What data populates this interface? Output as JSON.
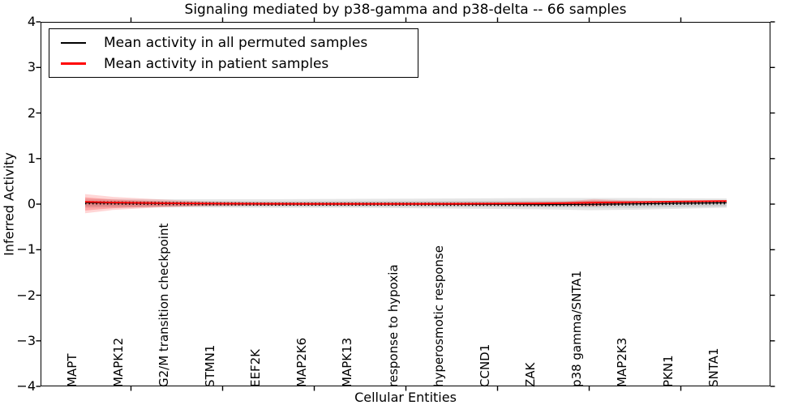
{
  "chart_data": {
    "type": "line",
    "title": "Signaling mediated by p38-gamma and p38-delta -- 66 samples",
    "xlabel": "Cellular Entities",
    "ylabel": "Inferred Activity",
    "ylim": [
      -4,
      4
    ],
    "grid": false,
    "legend_position": "upper left",
    "yticks": [
      {
        "value": 4,
        "label": "4"
      },
      {
        "value": 3,
        "label": "3"
      },
      {
        "value": 2,
        "label": "2"
      },
      {
        "value": 1,
        "label": "1"
      },
      {
        "value": 0,
        "label": "0"
      },
      {
        "value": -1,
        "label": "−1"
      },
      {
        "value": -2,
        "label": "−2"
      },
      {
        "value": -3,
        "label": "−3"
      },
      {
        "value": -4,
        "label": "−4"
      }
    ],
    "categories": [
      "MAPT",
      "MAPK12",
      "G2/M transition checkpoint",
      "STMN1",
      "EEF2K",
      "MAP2K6",
      "MAPK13",
      "response to hypoxia",
      "hyperosmotic response",
      "CCND1",
      "ZAK",
      "p38 gamma/SNTA1",
      "MAP2K3",
      "PKN1",
      "SNTA1"
    ],
    "xtick_positions": [
      1,
      3,
      5,
      7,
      9,
      11,
      13
    ],
    "series": [
      {
        "label": "Mean activity in all permuted samples",
        "color": "#000000",
        "marker": "ticks",
        "points": [
          [
            0,
            0.03
          ],
          [
            1,
            0.02
          ],
          [
            2,
            0.01
          ],
          [
            3,
            0.005
          ],
          [
            4,
            0.0
          ],
          [
            5,
            0.0
          ],
          [
            6,
            0.0
          ],
          [
            7,
            0.0
          ],
          [
            8,
            -0.005
          ],
          [
            9,
            -0.005
          ],
          [
            10,
            -0.01
          ],
          [
            11,
            -0.005
          ],
          [
            12,
            0.005
          ],
          [
            13,
            0.02
          ],
          [
            14,
            0.03
          ]
        ]
      },
      {
        "label": "Mean activity in patient samples",
        "color": "#ff0000",
        "marker": "none",
        "points": [
          [
            0,
            0.05
          ],
          [
            0.6,
            0.035
          ],
          [
            1.7,
            0.02
          ],
          [
            3,
            0.01
          ],
          [
            5,
            0.005
          ],
          [
            7,
            0.005
          ],
          [
            8,
            0.005
          ],
          [
            9,
            0.01
          ],
          [
            10,
            0.015
          ],
          [
            11,
            0.03
          ],
          [
            12,
            0.045
          ],
          [
            13,
            0.06
          ],
          [
            14,
            0.07
          ]
        ]
      }
    ],
    "bands": [
      {
        "name": "permuted-band-outer",
        "color": "rgba(0,0,0,0.10)",
        "upper": [
          [
            0,
            0.116
          ],
          [
            2,
            0.107
          ],
          [
            4,
            0.107
          ],
          [
            6,
            0.116
          ],
          [
            8,
            0.124
          ],
          [
            10,
            0.133
          ],
          [
            12,
            0.133
          ],
          [
            14,
            0.124
          ]
        ],
        "lower": [
          [
            0,
            -0.08
          ],
          [
            2,
            -0.071
          ],
          [
            4,
            -0.08
          ],
          [
            6,
            -0.08
          ],
          [
            8,
            -0.098
          ],
          [
            10,
            -0.116
          ],
          [
            11,
            -0.133
          ],
          [
            12,
            -0.124
          ],
          [
            14,
            -0.08
          ]
        ]
      },
      {
        "name": "permuted-band-inner",
        "color": "rgba(0,0,0,0.10)",
        "upper": [
          [
            0,
            0.07
          ],
          [
            4,
            0.06
          ],
          [
            8,
            0.07
          ],
          [
            12,
            0.08
          ],
          [
            14,
            0.07
          ]
        ],
        "lower": [
          [
            0,
            -0.05
          ],
          [
            4,
            -0.05
          ],
          [
            8,
            -0.06
          ],
          [
            12,
            -0.08
          ],
          [
            14,
            -0.05
          ]
        ]
      },
      {
        "name": "patient-band-outer",
        "color": "rgba(255,0,0,0.16)",
        "upper": [
          [
            0,
            0.22
          ],
          [
            0.6,
            0.16
          ],
          [
            1.7,
            0.1
          ],
          [
            2.6,
            0.06
          ],
          [
            3.5,
            0.045
          ],
          [
            5,
            0.04
          ],
          [
            7,
            0.04
          ],
          [
            9,
            0.045
          ],
          [
            10.5,
            0.06
          ],
          [
            11.1,
            0.11
          ],
          [
            11.6,
            0.09
          ],
          [
            12.3,
            0.06
          ],
          [
            13,
            0.06
          ],
          [
            14,
            0.075
          ]
        ],
        "lower": [
          [
            0,
            -0.2
          ],
          [
            0.6,
            -0.13
          ],
          [
            1.7,
            -0.07
          ],
          [
            2.6,
            -0.045
          ],
          [
            3.5,
            -0.035
          ],
          [
            5,
            -0.03
          ],
          [
            7,
            -0.03
          ],
          [
            9,
            -0.025
          ],
          [
            10.5,
            -0.03
          ],
          [
            11.1,
            -0.05
          ],
          [
            11.6,
            -0.02
          ],
          [
            12.3,
            0.0
          ],
          [
            13,
            0.01
          ],
          [
            14,
            0.02
          ]
        ]
      },
      {
        "name": "patient-band-inner",
        "color": "rgba(255,0,0,0.22)",
        "upper": [
          [
            0,
            0.15
          ],
          [
            0.6,
            0.1
          ],
          [
            1.7,
            0.06
          ],
          [
            2.6,
            0.04
          ],
          [
            4,
            0.03
          ],
          [
            7,
            0.03
          ],
          [
            9,
            0.035
          ],
          [
            10.5,
            0.045
          ],
          [
            11.1,
            0.08
          ],
          [
            12,
            0.05
          ],
          [
            13,
            0.045
          ],
          [
            14,
            0.06
          ]
        ],
        "lower": [
          [
            0,
            -0.14
          ],
          [
            0.6,
            -0.09
          ],
          [
            1.7,
            -0.05
          ],
          [
            2.6,
            -0.03
          ],
          [
            4,
            -0.02
          ],
          [
            7,
            -0.02
          ],
          [
            9,
            -0.01
          ],
          [
            10.5,
            -0.015
          ],
          [
            11.1,
            -0.03
          ],
          [
            12,
            0.01
          ],
          [
            13,
            0.02
          ],
          [
            14,
            0.03
          ]
        ]
      }
    ],
    "axis_color": "#000000",
    "background": "#ffffff"
  }
}
